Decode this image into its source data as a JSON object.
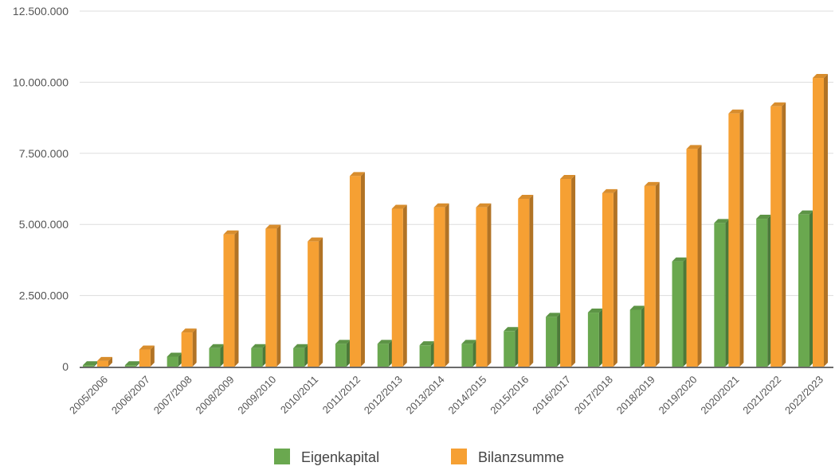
{
  "chart_data": {
    "type": "bar",
    "title": "",
    "xlabel": "",
    "ylabel": "",
    "ylim": [
      0,
      12500000
    ],
    "yticks": [
      0,
      2500000,
      5000000,
      7500000,
      10000000,
      12500000
    ],
    "ytick_labels": [
      "0",
      "2.500.000",
      "5.000.000",
      "7.500.000",
      "10.000.000",
      "12.500.000"
    ],
    "grid": true,
    "legend_position": "bottom",
    "style": "3d-bars",
    "categories": [
      "2005/2006",
      "2006/2007",
      "2007/2008",
      "2008/2009",
      "2009/2010",
      "2010/2011",
      "2011/2012",
      "2012/2013",
      "2013/2014",
      "2014/2015",
      "2015/2016",
      "2016/2017",
      "2017/2018",
      "2018/2019",
      "2019/2020",
      "2020/2021",
      "2021/2022",
      "2022/2023"
    ],
    "series": [
      {
        "name": "Eigenkapital",
        "color": "#6aa84f",
        "values": [
          50000,
          50000,
          350000,
          650000,
          650000,
          650000,
          800000,
          800000,
          750000,
          800000,
          1250000,
          1750000,
          1900000,
          2000000,
          3700000,
          5050000,
          5200000,
          5350000
        ]
      },
      {
        "name": "Bilanzsumme",
        "color": "#f6a033",
        "values": [
          200000,
          600000,
          1200000,
          4650000,
          4850000,
          4400000,
          6700000,
          5550000,
          5600000,
          5600000,
          5900000,
          6600000,
          6100000,
          6350000,
          7650000,
          8900000,
          9150000,
          10150000
        ]
      }
    ]
  }
}
